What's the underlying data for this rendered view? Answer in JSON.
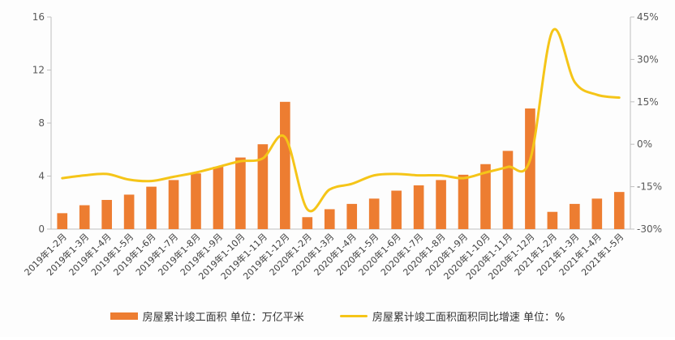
{
  "chart_data": {
    "type": "bar",
    "categories": [
      "2019年1-2月",
      "2019年1-3月",
      "2019年1-4月",
      "2019年1-5月",
      "2019年1-6月",
      "2019年1-7月",
      "2019年1-8月",
      "2019年1-9月",
      "2019年1-10月",
      "2019年1-11月",
      "2019年1-12月",
      "2020年1-2月",
      "2020年1-3月",
      "2020年1-4月",
      "2020年1-5月",
      "2020年1-6月",
      "2020年1-7月",
      "2020年1-8月",
      "2020年1-9月",
      "2020年1-10月",
      "2020年1-11月",
      "2020年1-12月",
      "2021年1-2月",
      "2021年1-3月",
      "2021年1-4月",
      "2021年1-5月"
    ],
    "series": [
      {
        "name": "房屋累计竣工面积 单位：万亿平米",
        "type": "bar",
        "axis": "left",
        "color": "#ed7d31",
        "values": [
          1.2,
          1.8,
          2.2,
          2.6,
          3.2,
          3.7,
          4.2,
          4.7,
          5.4,
          6.4,
          9.6,
          0.9,
          1.5,
          1.9,
          2.3,
          2.9,
          3.3,
          3.7,
          4.1,
          4.9,
          5.9,
          9.1,
          1.3,
          1.9,
          2.3,
          2.8
        ]
      },
      {
        "name": "房屋累计竣工面积面积同比增速 单位：%",
        "type": "line",
        "axis": "right",
        "color": "#f5c518",
        "values": [
          -12,
          -11,
          -10.5,
          -12.5,
          -13,
          -11.5,
          -10,
          -8,
          -6,
          -5,
          2.5,
          -23,
          -16,
          -14,
          -11,
          -10.5,
          -11,
          -11,
          -12,
          -10,
          -8,
          -5.5,
          40,
          22,
          17.5,
          16.5
        ]
      }
    ],
    "y_left": {
      "min": 0,
      "max": 16,
      "ticks": [
        "0",
        "4",
        "8",
        "12",
        "16"
      ]
    },
    "y_right": {
      "min": -30,
      "max": 45,
      "ticks": [
        "-30%",
        "-15%",
        "0%",
        "15%",
        "30%",
        "45%"
      ]
    },
    "legend_position": "bottom",
    "grid": false
  }
}
